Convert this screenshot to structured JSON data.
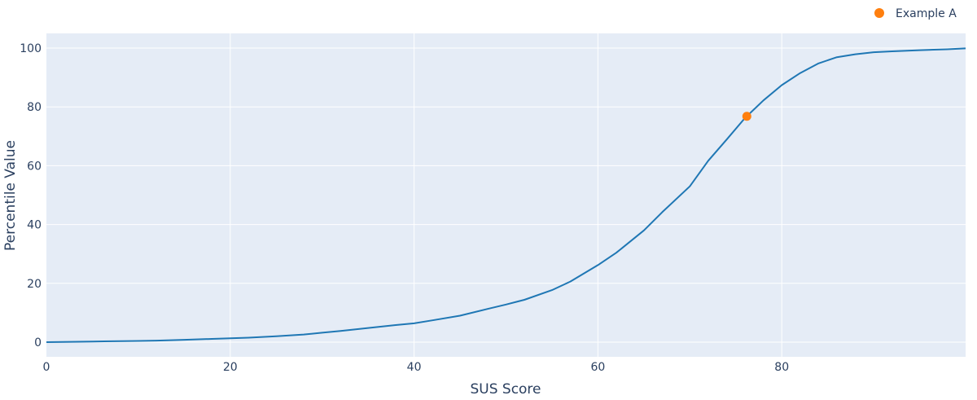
{
  "chart_data": {
    "type": "line",
    "title": "",
    "xlabel": "SUS Score",
    "ylabel": "Percentile Value",
    "xlim": [
      0,
      100
    ],
    "ylim": [
      -5,
      105
    ],
    "x_ticks": [
      0,
      20,
      40,
      60,
      80
    ],
    "y_ticks": [
      0,
      20,
      40,
      60,
      80,
      100
    ],
    "grid": true,
    "legend_position": "top-right",
    "series": [
      {
        "color": "#1f77b4",
        "x": [
          0,
          5,
          10,
          12,
          15,
          18,
          20,
          22,
          25,
          28,
          30,
          32,
          35,
          38,
          40,
          42,
          45,
          48,
          50,
          52,
          55,
          57,
          60,
          62,
          65,
          67,
          70,
          72,
          74,
          76,
          78,
          80,
          82,
          84,
          86,
          88,
          90,
          92,
          95,
          98,
          100
        ],
        "y": [
          0,
          0.2,
          0.4,
          0.5,
          0.8,
          1.1,
          1.3,
          1.5,
          2.0,
          2.6,
          3.2,
          3.8,
          4.8,
          5.8,
          6.4,
          7.4,
          9.0,
          11.3,
          12.8,
          14.4,
          17.7,
          20.6,
          26.2,
          30.4,
          38.0,
          44.2,
          53.0,
          61.7,
          68.9,
          76.2,
          82.2,
          87.4,
          91.5,
          94.8,
          96.9,
          97.9,
          98.6,
          98.9,
          99.3,
          99.6,
          99.9
        ]
      },
      {
        "name": "Example A",
        "color": "#ff7f0e",
        "mode": "markers",
        "x": [
          76.2
        ],
        "y": [
          76.8
        ]
      }
    ]
  }
}
